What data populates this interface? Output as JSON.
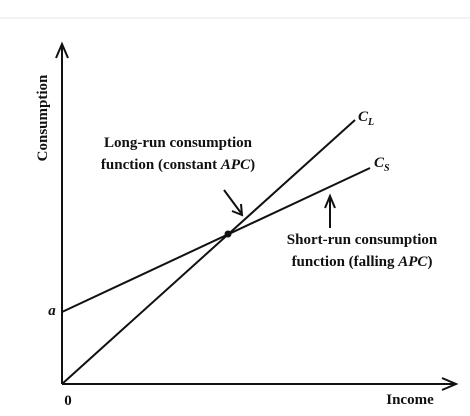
{
  "axes": {
    "y_label": "Consumption",
    "x_label": "Income",
    "origin": "0",
    "intercept": "a"
  },
  "lines": [
    {
      "label": "C",
      "subscript": "L"
    },
    {
      "label": "C",
      "subscript": "S"
    }
  ],
  "annotations": [
    {
      "line1": "Long-run consumption",
      "line2": [
        "function (constant ",
        "APC",
        ")"
      ]
    },
    {
      "line1": "Short-run consumption",
      "line2": [
        "function (falling ",
        "APC",
        ")"
      ]
    }
  ]
}
